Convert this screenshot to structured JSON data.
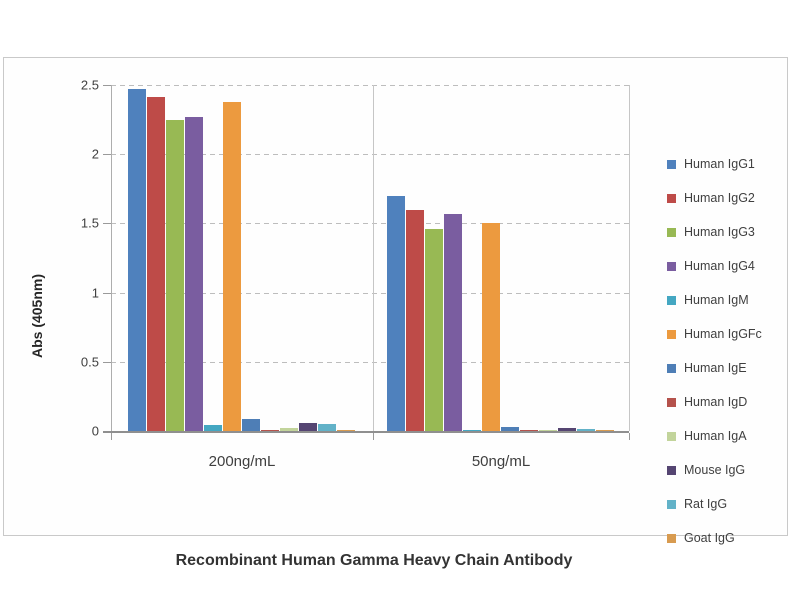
{
  "chart_data": {
    "type": "bar",
    "title": "Recombinant Human Gamma Heavy Chain Antibody",
    "ylabel": "Abs (405nm)",
    "xlabel": "",
    "categories": [
      "200ng/mL",
      "50ng/mL"
    ],
    "y_ticks": [
      "0",
      "0.5",
      "1",
      "1.5",
      "2",
      "2.5"
    ],
    "ylim": [
      0,
      2.5
    ],
    "grid": "horizontal-dashed",
    "legend_position": "right",
    "series": [
      {
        "name": "Human IgG1",
        "color": "#4F81BD",
        "values": [
          2.47,
          1.7
        ]
      },
      {
        "name": "Human IgG2",
        "color": "#BE4B48",
        "values": [
          2.41,
          1.6
        ]
      },
      {
        "name": "Human IgG3",
        "color": "#98B954",
        "values": [
          2.25,
          1.46
        ]
      },
      {
        "name": "Human IgG4",
        "color": "#7A5DA0",
        "values": [
          2.27,
          1.57
        ]
      },
      {
        "name": "Human IgM",
        "color": "#44A7C2",
        "values": [
          0.04,
          0.005
        ]
      },
      {
        "name": "Human IgGFc",
        "color": "#EC9A3F",
        "values": [
          2.38,
          1.5
        ]
      },
      {
        "name": "Human IgE",
        "color": "#4E7EB6",
        "values": [
          0.09,
          0.03
        ]
      },
      {
        "name": "Human IgD",
        "color": "#B5524C",
        "values": [
          0.01,
          0.005
        ]
      },
      {
        "name": "Human IgA",
        "color": "#C2D49B",
        "values": [
          0.02,
          0.01
        ]
      },
      {
        "name": "Mouse IgG",
        "color": "#554572",
        "values": [
          0.06,
          0.02
        ]
      },
      {
        "name": "Rat IgG",
        "color": "#62B2C8",
        "values": [
          0.05,
          0.015
        ]
      },
      {
        "name": "Goat IgG",
        "color": "#D89B50",
        "values": [
          0.01,
          0.005
        ]
      }
    ]
  },
  "palette": {
    "frame_border": "#C9C9C9",
    "axis_line": "#8F8F8F",
    "gridline": "#BDBDBD",
    "text": "#3F3F3F"
  }
}
